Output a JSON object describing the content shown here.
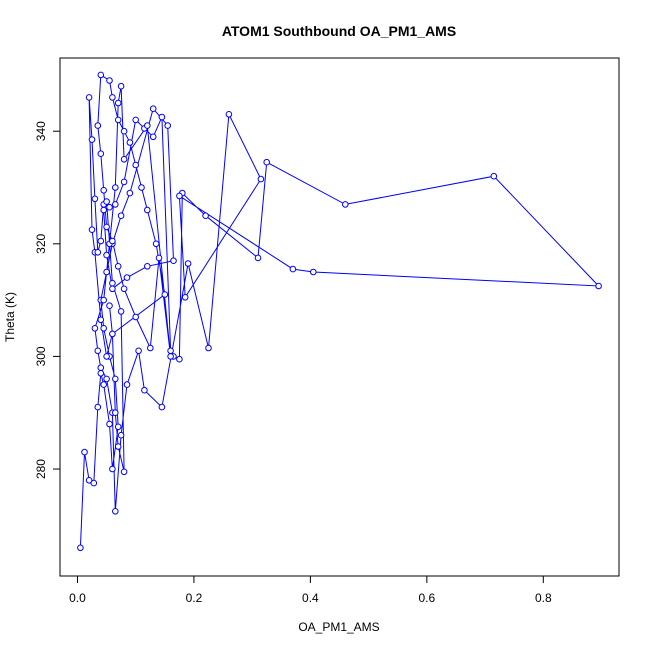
{
  "chart_data": {
    "type": "scatter",
    "title": "ATOM1 Southbound OA_PM1_AMS",
    "xlabel": "OA_PM1_AMS",
    "ylabel": "Theta (K)",
    "xlim": [
      -0.03,
      0.93
    ],
    "ylim": [
      261,
      353
    ],
    "xticks": [
      "0.0",
      "0.2",
      "0.4",
      "0.6",
      "0.8"
    ],
    "xtick_values": [
      0.0,
      0.2,
      0.4,
      0.6,
      0.8
    ],
    "yticks": [
      "280",
      "300",
      "320",
      "340"
    ],
    "ytick_values": [
      280,
      300,
      320,
      340
    ],
    "grid": false,
    "style": "points connected by lines, open circles",
    "color": "#0000ff",
    "series": [
      {
        "x": [
          0.005,
          0.012,
          0.02,
          0.028,
          0.035,
          0.04,
          0.045,
          0.055,
          0.06,
          0.07,
          0.065,
          0.055,
          0.045,
          0.04,
          0.05,
          0.06,
          0.075,
          0.09,
          0.13,
          0.155,
          0.165,
          0.12,
          0.085,
          0.06,
          0.05,
          0.045,
          0.055,
          0.065,
          0.08,
          0.1,
          0.115,
          0.13,
          0.145,
          0.16,
          0.165,
          0.175,
          0.18,
          0.22,
          0.31,
          0.325,
          0.46,
          0.715,
          0.895,
          0.405,
          0.37,
          0.175,
          0.185,
          0.315,
          0.26,
          0.225,
          0.19,
          0.145,
          0.115,
          0.105,
          0.085,
          0.075,
          0.065,
          0.06,
          0.05,
          0.04,
          0.035,
          0.03,
          0.045,
          0.055,
          0.065,
          0.07,
          0.075,
          0.08,
          0.12,
          0.16,
          0.14,
          0.125,
          0.1,
          0.08,
          0.07,
          0.06,
          0.05,
          0.045,
          0.04,
          0.035,
          0.04,
          0.055,
          0.06,
          0.07,
          0.08,
          0.09,
          0.1,
          0.11,
          0.12,
          0.135,
          0.15,
          0.06,
          0.05,
          0.04,
          0.03,
          0.025,
          0.02,
          0.025,
          0.03,
          0.035,
          0.04,
          0.045,
          0.05,
          0.06,
          0.075,
          0.08,
          0.07,
          0.065,
          0.06,
          0.055
        ],
        "y": [
          266,
          283,
          278,
          277.5,
          291,
          297,
          295,
          288,
          280,
          287.5,
          296,
          300,
          305,
          310,
          315,
          320,
          325,
          329,
          344,
          341,
          317,
          316,
          314,
          312,
          318,
          326,
          326.5,
          327,
          331,
          342,
          340.5,
          339,
          342.5,
          301,
          300,
          299.5,
          329,
          325,
          317.5,
          334.5,
          327,
          332,
          312.5,
          315,
          315.5,
          328.5,
          310.5,
          331.5,
          343,
          301.5,
          316.5,
          291,
          294,
          301,
          295,
          286,
          272.5,
          290,
          296,
          298,
          301,
          305,
          310,
          320,
          330,
          345,
          348,
          335,
          341,
          300,
          317.5,
          301.5,
          307,
          312,
          316,
          320.5,
          323,
          329.5,
          336,
          341,
          350,
          349,
          346,
          342,
          340,
          338,
          334,
          330,
          326,
          320,
          311,
          304,
          300,
          306.5,
          318.5,
          322.5,
          346,
          338.5,
          328,
          318.5,
          320.5,
          327,
          327.5,
          313,
          308,
          279.5,
          284,
          290,
          304,
          309
        ]
      }
    ]
  }
}
